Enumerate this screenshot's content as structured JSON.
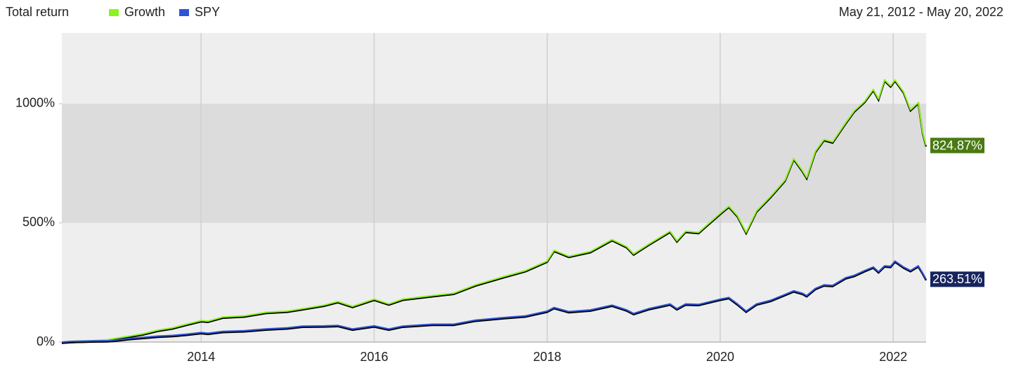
{
  "chart_data": {
    "type": "line",
    "title": "Total return",
    "date_range": "May 21, 2012 - May 20, 2022",
    "x": [
      2012.39,
      2012.5,
      2012.75,
      2012.92,
      2013.0,
      2013.17,
      2013.33,
      2013.5,
      2013.67,
      2013.83,
      2014.0,
      2014.08,
      2014.25,
      2014.5,
      2014.75,
      2015.0,
      2015.17,
      2015.42,
      2015.58,
      2015.75,
      2016.0,
      2016.17,
      2016.33,
      2016.67,
      2016.92,
      2017.17,
      2017.5,
      2017.75,
      2018.0,
      2018.08,
      2018.25,
      2018.5,
      2018.75,
      2018.92,
      2019.0,
      2019.17,
      2019.42,
      2019.5,
      2019.6,
      2019.75,
      2020.0,
      2020.1,
      2020.2,
      2020.3,
      2020.42,
      2020.58,
      2020.75,
      2020.85,
      2020.95,
      2021.0,
      2021.1,
      2021.2,
      2021.3,
      2021.45,
      2021.55,
      2021.67,
      2021.77,
      2021.83,
      2021.9,
      2021.97,
      2022.02,
      2022.12,
      2022.2,
      2022.29,
      2022.34,
      2022.38
    ],
    "series": [
      {
        "name": "Growth",
        "color": "#8ef21f",
        "label_color": "#4a7a12",
        "end_label": "824.87%",
        "values": [
          0,
          3,
          6,
          10,
          15,
          25,
          35,
          50,
          60,
          75,
          90,
          88,
          105,
          110,
          125,
          130,
          140,
          155,
          170,
          150,
          180,
          160,
          180,
          195,
          205,
          240,
          275,
          300,
          340,
          385,
          360,
          380,
          430,
          400,
          370,
          410,
          465,
          425,
          465,
          460,
          540,
          570,
          530,
          460,
          550,
          610,
          680,
          770,
          720,
          690,
          800,
          850,
          840,
          920,
          970,
          1010,
          1060,
          1020,
          1100,
          1075,
          1100,
          1050,
          975,
          1005,
          880,
          824.87
        ]
      },
      {
        "name": "SPY",
        "color": "#2f53d6",
        "label_color": "#17255e",
        "end_label": "263.51%",
        "values": [
          0,
          3,
          5,
          6,
          8,
          15,
          20,
          25,
          28,
          33,
          40,
          37,
          45,
          48,
          55,
          60,
          67,
          68,
          70,
          55,
          68,
          55,
          67,
          75,
          75,
          92,
          103,
          110,
          130,
          145,
          128,
          135,
          155,
          135,
          120,
          140,
          160,
          140,
          160,
          158,
          180,
          187,
          160,
          130,
          160,
          175,
          200,
          215,
          205,
          195,
          225,
          240,
          238,
          270,
          280,
          300,
          315,
          295,
          320,
          318,
          340,
          315,
          300,
          320,
          290,
          263.51
        ]
      }
    ],
    "xlim": [
      2012.39,
      2022.38
    ],
    "xticks": [
      2014,
      2016,
      2018,
      2020,
      2022
    ],
    "ylim": [
      0,
      1297
    ],
    "yticks": [
      {
        "value": 0,
        "label": "0%"
      },
      {
        "value": 500,
        "label": "500%"
      },
      {
        "value": 1000,
        "label": "1000%"
      }
    ],
    "grid": true
  }
}
